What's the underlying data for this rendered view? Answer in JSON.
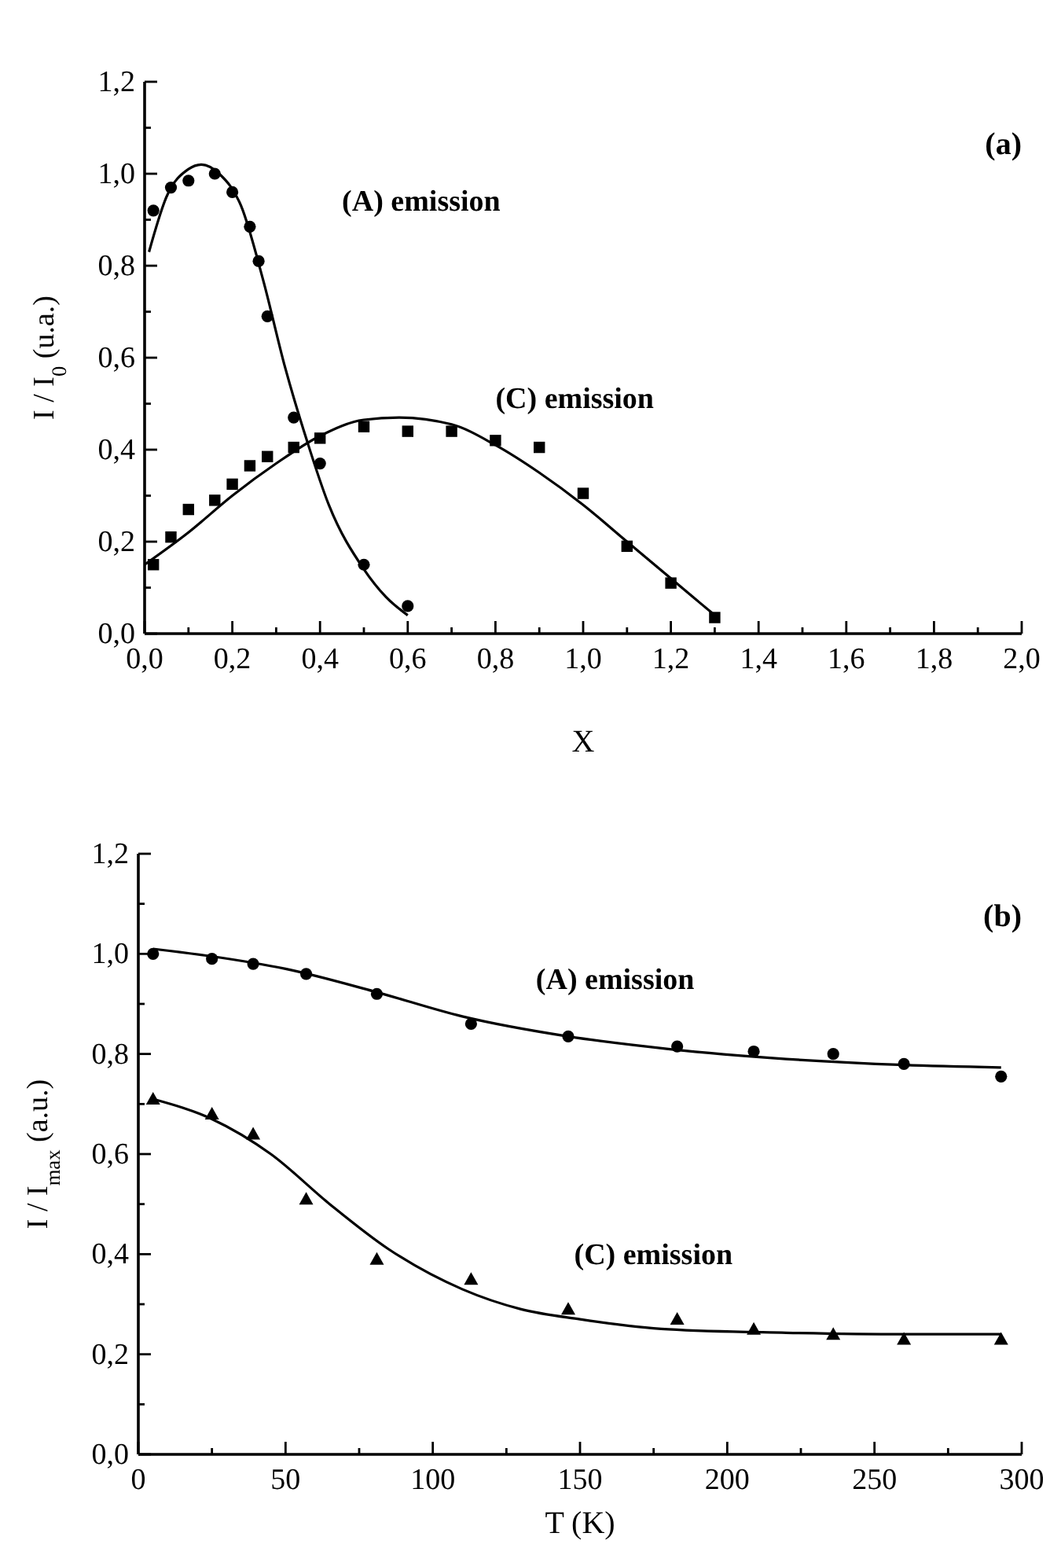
{
  "chart_data": [
    {
      "type": "scatter",
      "xlabel": "X",
      "ylabel": "I / I$_{0}$ (u.a.)",
      "annotations": [
        "(a)"
      ],
      "xlim": [
        0,
        2
      ],
      "ylim": [
        0,
        1.2
      ],
      "xticks": [
        {
          "value": 0,
          "label": "0,0"
        },
        {
          "value": 0.1,
          "label": null
        },
        {
          "value": 0.2,
          "label": "0,2"
        },
        {
          "value": 0.3,
          "label": null
        },
        {
          "value": 0.4,
          "label": "0,4"
        },
        {
          "value": 0.5,
          "label": null
        },
        {
          "value": 0.6,
          "label": "0,6"
        },
        {
          "value": 0.7,
          "label": null
        },
        {
          "value": 0.8,
          "label": "0,8"
        },
        {
          "value": 0.9,
          "label": null
        },
        {
          "value": 1,
          "label": "1,0"
        },
        {
          "value": 1.1,
          "label": null
        },
        {
          "value": 1.2,
          "label": "1,2"
        },
        {
          "value": 1.3,
          "label": null
        },
        {
          "value": 1.4,
          "label": "1,4"
        },
        {
          "value": 1.5,
          "label": null
        },
        {
          "value": 1.6,
          "label": "1,6"
        },
        {
          "value": 1.7,
          "label": null
        },
        {
          "value": 1.8,
          "label": "1,8"
        },
        {
          "value": 1.9,
          "label": null
        },
        {
          "value": 2,
          "label": "2,0"
        }
      ],
      "yticks": [
        {
          "value": 0,
          "label": "0,0"
        },
        {
          "value": 0.1,
          "label": null
        },
        {
          "value": 0.2,
          "label": "0,2"
        },
        {
          "value": 0.3,
          "label": null
        },
        {
          "value": 0.4,
          "label": "0,4"
        },
        {
          "value": 0.5,
          "label": null
        },
        {
          "value": 0.6,
          "label": "0,6"
        },
        {
          "value": 0.7,
          "label": null
        },
        {
          "value": 0.8,
          "label": "0,8"
        },
        {
          "value": 0.9,
          "label": null
        },
        {
          "value": 1,
          "label": "1,0"
        },
        {
          "value": 1.1,
          "label": null
        },
        {
          "value": 1.2,
          "label": "1,2"
        }
      ],
      "series": [
        {
          "name": "(A) emission",
          "marker": "circle",
          "color": "#000000",
          "x": [
            0.02,
            0.06,
            0.1,
            0.16,
            0.2,
            0.24,
            0.26,
            0.28,
            0.34,
            0.4,
            0.5,
            0.6
          ],
          "values": [
            0.92,
            0.97,
            0.985,
            1.0,
            0.96,
            0.885,
            0.81,
            0.69,
            0.47,
            0.37,
            0.15,
            0.06
          ]
        },
        {
          "type": "line",
          "marker": "none",
          "line_style": "solid",
          "color": "#000000",
          "x": [
            0.01,
            0.05,
            0.1,
            0.13,
            0.17,
            0.22,
            0.27,
            0.32,
            0.37,
            0.42,
            0.5,
            0.55,
            0.6
          ],
          "values": [
            0.83,
            0.95,
            1.01,
            1.02,
            1.0,
            0.93,
            0.77,
            0.58,
            0.42,
            0.28,
            0.14,
            0.08,
            0.04
          ]
        },
        {
          "name": "(C) emission",
          "marker": "square",
          "color": "#000000",
          "x": [
            0.02,
            0.06,
            0.1,
            0.16,
            0.2,
            0.24,
            0.28,
            0.34,
            0.4,
            0.5,
            0.6,
            0.7,
            0.8,
            0.9,
            1.0,
            1.1,
            1.2,
            1.3
          ],
          "values": [
            0.15,
            0.21,
            0.27,
            0.29,
            0.325,
            0.365,
            0.385,
            0.405,
            0.425,
            0.45,
            0.44,
            0.44,
            0.42,
            0.405,
            0.305,
            0.19,
            0.11,
            0.035
          ]
        },
        {
          "type": "line",
          "marker": "none",
          "line_style": "solid",
          "color": "#000000",
          "x": [
            0,
            0.1,
            0.2,
            0.3,
            0.4,
            0.5,
            0.58,
            0.7,
            0.8,
            0.9,
            1.0,
            1.1,
            1.2,
            1.3
          ],
          "values": [
            0.15,
            0.22,
            0.3,
            0.37,
            0.43,
            0.465,
            0.47,
            0.455,
            0.41,
            0.35,
            0.28,
            0.2,
            0.12,
            0.04
          ]
        }
      ]
    },
    {
      "type": "scatter",
      "xlabel": "T (K)",
      "ylabel": "I / I$_{max}$ (a.u.)",
      "annotations": [
        "(b)"
      ],
      "xlim": [
        0,
        300
      ],
      "ylim": [
        0,
        1.2
      ],
      "xticks": [
        0,
        {
          "value": 25,
          "label": null
        },
        50,
        {
          "value": 75,
          "label": null
        },
        100,
        {
          "value": 125,
          "label": null
        },
        150,
        {
          "value": 175,
          "label": null
        },
        200,
        {
          "value": 225,
          "label": null
        },
        250,
        {
          "value": 275,
          "label": null
        },
        300
      ],
      "yticks": [
        {
          "value": 0,
          "label": "0,0"
        },
        {
          "value": 0.1,
          "label": null
        },
        {
          "value": 0.2,
          "label": "0,2"
        },
        {
          "value": 0.3,
          "label": null
        },
        {
          "value": 0.4,
          "label": "0,4"
        },
        {
          "value": 0.5,
          "label": null
        },
        {
          "value": 0.6,
          "label": "0,6"
        },
        {
          "value": 0.7,
          "label": null
        },
        {
          "value": 0.8,
          "label": "0,8"
        },
        {
          "value": 0.9,
          "label": null
        },
        {
          "value": 1,
          "label": "1,0"
        },
        {
          "value": 1.1,
          "label": null
        },
        {
          "value": 1.2,
          "label": "1,2"
        }
      ],
      "series": [
        {
          "name": "(A) emission",
          "marker": "circle",
          "color": "#000000",
          "x": [
            5,
            25,
            39,
            57,
            81,
            113,
            146,
            183,
            209,
            236,
            260,
            293
          ],
          "values": [
            1.0,
            0.99,
            0.98,
            0.96,
            0.92,
            0.86,
            0.835,
            0.815,
            0.805,
            0.8,
            0.78,
            0.755
          ]
        },
        {
          "type": "line",
          "marker": "none",
          "line_style": "solid",
          "color": "#000000",
          "x": [
            5,
            25,
            50,
            80,
            110,
            146,
            180,
            220,
            260,
            293
          ],
          "values": [
            1.01,
            0.995,
            0.97,
            0.925,
            0.875,
            0.835,
            0.81,
            0.79,
            0.778,
            0.773
          ]
        },
        {
          "name": "(C) emission",
          "marker": "triangle",
          "color": "#000000",
          "x": [
            5,
            25,
            39,
            57,
            81,
            113,
            146,
            183,
            209,
            236,
            260,
            293
          ],
          "values": [
            0.71,
            0.68,
            0.64,
            0.51,
            0.39,
            0.35,
            0.29,
            0.27,
            0.25,
            0.24,
            0.23,
            0.23
          ]
        },
        {
          "type": "line",
          "marker": "none",
          "line_style": "solid",
          "color": "#000000",
          "x": [
            5,
            25,
            45,
            65,
            85,
            110,
            130,
            150,
            180,
            220,
            260,
            293
          ],
          "values": [
            0.71,
            0.67,
            0.6,
            0.5,
            0.41,
            0.33,
            0.29,
            0.27,
            0.25,
            0.243,
            0.24,
            0.24
          ]
        }
      ]
    }
  ]
}
